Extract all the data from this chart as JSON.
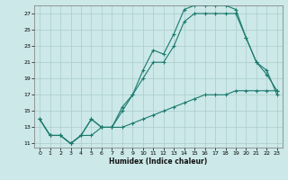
{
  "title": "",
  "xlabel": "Humidex (Indice chaleur)",
  "background_color": "#cce8e8",
  "grid_color": "#aacccc",
  "line_color": "#1a7a6e",
  "xlim": [
    -0.5,
    23.5
  ],
  "ylim": [
    10.5,
    28.0
  ],
  "xticks": [
    0,
    1,
    2,
    3,
    4,
    5,
    6,
    7,
    8,
    9,
    10,
    11,
    12,
    13,
    14,
    15,
    16,
    17,
    18,
    19,
    20,
    21,
    22,
    23
  ],
  "yticks": [
    11,
    13,
    15,
    17,
    19,
    21,
    23,
    25,
    27
  ],
  "curve_top_x": [
    0,
    1,
    2,
    3,
    4,
    5,
    6,
    7,
    8,
    9,
    10,
    11,
    12,
    13,
    14,
    15,
    16,
    17,
    18,
    19,
    20,
    21,
    22,
    23
  ],
  "curve_top_y": [
    14,
    12,
    12,
    11,
    12,
    14,
    13,
    13,
    15.5,
    17,
    20,
    22.5,
    22,
    24.5,
    27.5,
    28,
    28,
    28,
    28,
    27.5,
    24,
    21,
    19.5,
    17.5
  ],
  "curve_mid_x": [
    0,
    1,
    2,
    3,
    4,
    5,
    6,
    7,
    8,
    9,
    10,
    11,
    12,
    13,
    14,
    15,
    16,
    17,
    18,
    19,
    20,
    21,
    22,
    23
  ],
  "curve_mid_y": [
    14,
    12,
    12,
    11,
    12,
    14,
    13,
    13,
    15,
    17,
    19,
    21,
    21,
    23,
    26,
    27,
    27,
    27,
    27,
    27,
    24,
    21,
    20,
    17
  ],
  "curve_bot_x": [
    0,
    1,
    2,
    3,
    4,
    5,
    6,
    7,
    8,
    9,
    10,
    11,
    12,
    13,
    14,
    15,
    16,
    17,
    18,
    19,
    20,
    21,
    22,
    23
  ],
  "curve_bot_y": [
    14,
    12,
    12,
    11,
    12,
    12,
    13,
    13,
    13,
    13.5,
    14,
    14.5,
    15,
    15.5,
    16,
    16.5,
    17,
    17,
    17,
    17.5,
    17.5,
    17.5,
    17.5,
    17.5
  ]
}
